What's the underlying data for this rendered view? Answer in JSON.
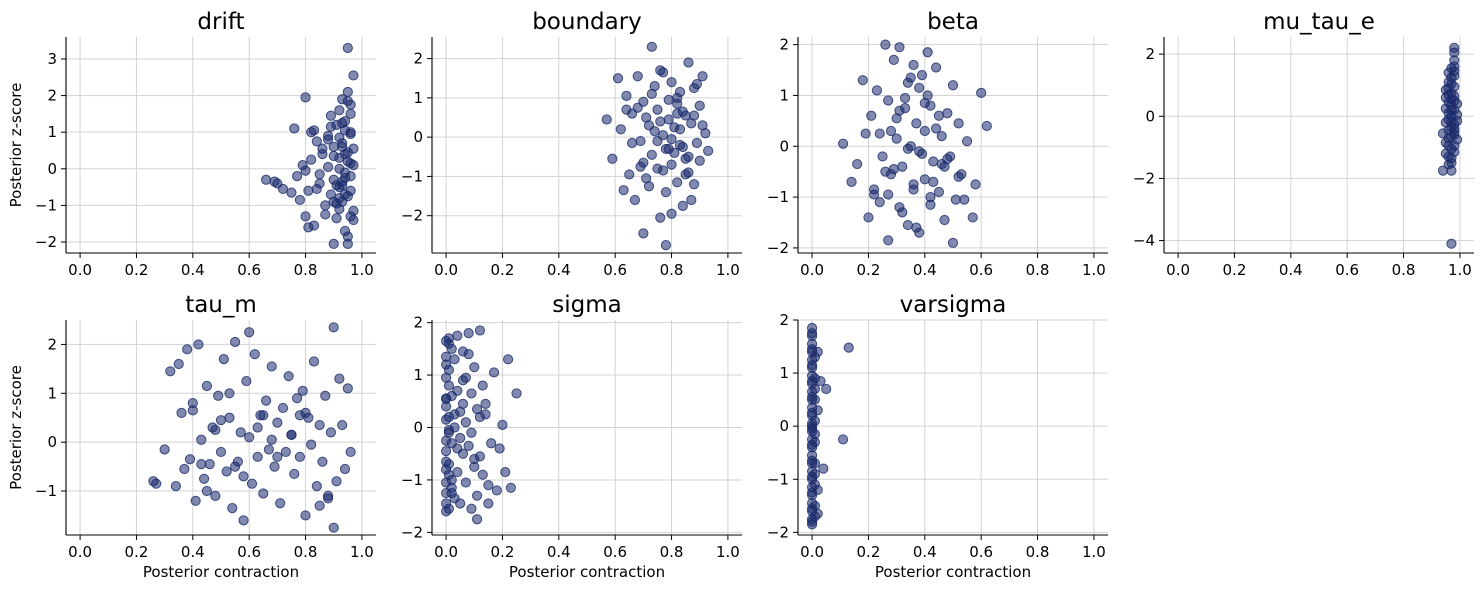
{
  "figure": {
    "xlabel": "Posterior contraction",
    "ylabel": "Posterior z-score"
  },
  "style": {
    "point_color": "#1a2a6c",
    "grid_color": "#d3d3d3"
  },
  "chart_data": [
    {
      "type": "scatter",
      "title": "drift",
      "grid": true,
      "xlim": [
        -0.05,
        1.05
      ],
      "ylim": [
        -2.3,
        3.6
      ],
      "xticks": [
        0,
        0.2,
        0.4,
        0.6,
        0.8,
        1.0
      ],
      "xtick_labels": [
        "0.0",
        "0.2",
        "0.4",
        "0.6",
        "0.8",
        "1.0"
      ],
      "yticks": [
        -2,
        -1,
        0,
        1,
        2,
        3
      ],
      "ytick_labels": [
        "−2",
        "−1",
        "0",
        "1",
        "2",
        "3"
      ],
      "show_ylabel": true,
      "show_xlabel": false,
      "x": [
        0.66,
        0.69,
        0.7,
        0.72,
        0.75,
        0.76,
        0.77,
        0.78,
        0.79,
        0.8,
        0.8,
        0.81,
        0.82,
        0.83,
        0.84,
        0.85,
        0.86,
        0.87,
        0.88,
        0.89,
        0.89,
        0.9,
        0.9,
        0.91,
        0.91,
        0.92,
        0.92,
        0.92,
        0.93,
        0.93,
        0.93,
        0.94,
        0.94,
        0.94,
        0.95,
        0.95,
        0.95,
        0.96,
        0.96,
        0.96,
        0.97,
        0.97,
        0.8,
        0.82,
        0.85,
        0.88,
        0.9,
        0.92,
        0.93,
        0.94,
        0.95,
        0.96,
        0.97,
        0.88,
        0.91,
        0.93,
        0.95,
        0.96,
        0.94,
        0.92,
        0.9,
        0.89,
        0.87,
        0.86,
        0.84,
        0.83,
        0.81,
        0.92,
        0.95,
        0.97,
        0.96,
        0.94,
        0.93,
        0.91,
        0.9,
        0.95,
        0.96,
        0.97,
        0.94,
        0.92,
        0.96,
        0.95,
        0.93
      ],
      "y": [
        -0.3,
        -0.35,
        -0.4,
        -0.55,
        -0.65,
        1.1,
        -0.2,
        -0.85,
        0.1,
        -1.3,
        1.95,
        -0.6,
        0.25,
        -1.55,
        0.75,
        -0.4,
        0.55,
        -1.0,
        0.9,
        1.45,
        -0.7,
        -2.05,
        0.35,
        1.2,
        -1.35,
        0.0,
        -0.5,
        1.6,
        1.9,
        -0.9,
        0.6,
        -1.7,
        1.05,
        -0.25,
        2.1,
        -2.05,
        0.45,
        1.75,
        -0.6,
        0.95,
        2.55,
        -1.4,
        -0.05,
        1.0,
        -0.15,
        0.8,
        -0.9,
        0.3,
        -0.35,
        1.3,
        -0.75,
        0.15,
        -1.15,
        0.05,
        -0.45,
        0.7,
        -1.85,
        1.5,
        -0.1,
        0.85,
        -0.3,
        1.15,
        -1.25,
        0.4,
        -0.55,
        1.05,
        -1.6,
        -1.1,
        0.2,
        0.55,
        -0.2,
        -0.7,
        1.25,
        -0.95,
        0.6,
        1.85,
        -1.3,
        0.1,
        0.4,
        -0.8,
        1.0,
        3.3,
        -0.45
      ]
    },
    {
      "type": "scatter",
      "title": "boundary",
      "grid": true,
      "xlim": [
        -0.05,
        1.05
      ],
      "ylim": [
        -2.95,
        2.55
      ],
      "xticks": [
        0,
        0.2,
        0.4,
        0.6,
        0.8,
        1.0
      ],
      "xtick_labels": [
        "0.0",
        "0.2",
        "0.4",
        "0.6",
        "0.8",
        "1.0"
      ],
      "yticks": [
        -2,
        -1,
        0,
        1,
        2
      ],
      "ytick_labels": [
        "−2",
        "−1",
        "0",
        "1",
        "2"
      ],
      "show_ylabel": false,
      "show_xlabel": false,
      "x": [
        0.57,
        0.59,
        0.61,
        0.62,
        0.63,
        0.64,
        0.65,
        0.66,
        0.67,
        0.68,
        0.69,
        0.7,
        0.7,
        0.71,
        0.72,
        0.73,
        0.73,
        0.74,
        0.75,
        0.75,
        0.76,
        0.77,
        0.77,
        0.78,
        0.79,
        0.79,
        0.8,
        0.8,
        0.81,
        0.82,
        0.82,
        0.83,
        0.83,
        0.84,
        0.85,
        0.85,
        0.86,
        0.86,
        0.87,
        0.88,
        0.88,
        0.89,
        0.9,
        0.9,
        0.91,
        0.92,
        0.93,
        0.72,
        0.76,
        0.8,
        0.84,
        0.78,
        0.74,
        0.82,
        0.86,
        0.7,
        0.68,
        0.88,
        0.8,
        0.76,
        0.84,
        0.79,
        0.81,
        0.83,
        0.77,
        0.73,
        0.75,
        0.87,
        0.89,
        0.66,
        0.64,
        0.91,
        0.85,
        0.71,
        0.69,
        0.78,
        0.82
      ],
      "y": [
        0.45,
        -0.55,
        1.5,
        0.2,
        -1.35,
        1.05,
        -0.95,
        0.6,
        -1.6,
        1.55,
        -0.1,
        -2.45,
        0.9,
        -1.05,
        0.3,
        2.3,
        -0.45,
        1.3,
        -0.8,
        0.7,
        -2.05,
        1.65,
        0.05,
        -1.4,
        0.95,
        -0.3,
        1.4,
        -0.7,
        0.25,
        -1.15,
        0.85,
        -0.2,
        1.15,
        -1.75,
        0.55,
        -0.55,
        1.9,
        -0.9,
        0.35,
        1.25,
        -1.2,
        -0.15,
        0.8,
        -0.6,
        1.55,
        0.1,
        -0.35,
        -1.25,
        0.4,
        -0.05,
        0.65,
        -2.75,
        0.15,
        1.0,
        -0.5,
        -0.65,
        0.75,
        0.55,
        -1.95,
        1.7,
        -0.25,
        0.45,
        -0.4,
        0.2,
        -0.85,
        1.1,
        -0.1,
        -1.6,
        1.35,
        -0.15,
        0.7,
        0.3,
        -0.95,
        0.5,
        -0.75,
        -0.3,
        0.6
      ]
    },
    {
      "type": "scatter",
      "title": "beta",
      "grid": true,
      "xlim": [
        -0.05,
        1.05
      ],
      "ylim": [
        -2.1,
        2.15
      ],
      "xticks": [
        0,
        0.2,
        0.4,
        0.6,
        0.8,
        1.0
      ],
      "xtick_labels": [
        "0.0",
        "0.2",
        "0.4",
        "0.6",
        "0.8",
        "1.0"
      ],
      "yticks": [
        -2,
        -1,
        0,
        1,
        2
      ],
      "ytick_labels": [
        "−2",
        "−1",
        "0",
        "1",
        "2"
      ],
      "show_ylabel": false,
      "show_xlabel": false,
      "x": [
        0.11,
        0.14,
        0.16,
        0.18,
        0.2,
        0.21,
        0.22,
        0.23,
        0.24,
        0.25,
        0.26,
        0.27,
        0.27,
        0.28,
        0.29,
        0.3,
        0.31,
        0.31,
        0.32,
        0.33,
        0.34,
        0.34,
        0.35,
        0.36,
        0.36,
        0.37,
        0.38,
        0.38,
        0.39,
        0.4,
        0.4,
        0.41,
        0.42,
        0.42,
        0.43,
        0.44,
        0.45,
        0.46,
        0.47,
        0.48,
        0.49,
        0.5,
        0.51,
        0.52,
        0.53,
        0.55,
        0.57,
        0.6,
        0.62,
        0.26,
        0.3,
        0.34,
        0.38,
        0.42,
        0.46,
        0.5,
        0.28,
        0.32,
        0.36,
        0.4,
        0.44,
        0.48,
        0.24,
        0.35,
        0.45,
        0.39,
        0.33,
        0.29,
        0.41,
        0.37,
        0.43,
        0.31,
        0.27,
        0.47,
        0.52,
        0.22,
        0.19,
        0.54,
        0.58
      ],
      "y": [
        0.05,
        -0.7,
        -0.35,
        1.3,
        -1.4,
        0.6,
        -0.95,
        1.1,
        0.25,
        -0.2,
        2.0,
        -1.85,
        0.9,
        -0.55,
        1.7,
        0.15,
        -1.2,
        1.95,
        -0.4,
        0.75,
        -1.55,
        1.25,
        0.0,
        -0.85,
        1.6,
        0.45,
        -1.7,
        -0.1,
        1.4,
        -0.65,
        0.3,
        1.0,
        -1.15,
        0.8,
        -0.3,
        1.55,
        -0.9,
        0.2,
        -1.45,
        0.65,
        -0.2,
        1.2,
        -1.05,
        0.45,
        -0.55,
        0.1,
        -1.4,
        1.05,
        0.4,
        -0.5,
        0.55,
        -0.05,
        1.15,
        -1.0,
        -0.35,
        -1.9,
        0.3,
        -1.3,
        -0.75,
        0.85,
        0.35,
        -0.25,
        -1.1,
        1.35,
        0.6,
        -0.15,
        0.95,
        -0.45,
        1.85,
        -1.6,
        -0.7,
        0.7,
        -0.95,
        -0.4,
        -0.6,
        -0.85,
        0.25,
        -1.05,
        -0.75
      ]
    },
    {
      "type": "scatter",
      "title": "mu_tau_e",
      "grid": true,
      "xlim": [
        -0.05,
        1.05
      ],
      "ylim": [
        -4.4,
        2.55
      ],
      "xticks": [
        0,
        0.2,
        0.4,
        0.6,
        0.8,
        1.0
      ],
      "xtick_labels": [
        "0.0",
        "0.2",
        "0.4",
        "0.6",
        "0.8",
        "1.0"
      ],
      "yticks": [
        -4,
        -2,
        0,
        2
      ],
      "ytick_labels": [
        "−4",
        "−2",
        "0",
        "2"
      ],
      "show_ylabel": false,
      "show_xlabel": false,
      "x": [
        0.94,
        0.95,
        0.95,
        0.95,
        0.96,
        0.96,
        0.96,
        0.96,
        0.96,
        0.97,
        0.97,
        0.97,
        0.97,
        0.97,
        0.97,
        0.98,
        0.98,
        0.98,
        0.98,
        0.98,
        0.98,
        0.98,
        0.99,
        0.99,
        0.99,
        0.94,
        0.95,
        0.96,
        0.96,
        0.97,
        0.97,
        0.98,
        0.98,
        0.98,
        0.99,
        0.95,
        0.96,
        0.97,
        0.97,
        0.98,
        0.98,
        0.96,
        0.97,
        0.97,
        0.98,
        0.96,
        0.97,
        0.98,
        0.95,
        0.96,
        0.97,
        0.98,
        0.97,
        0.96,
        0.98,
        0.97
      ],
      "y": [
        -1.75,
        -0.2,
        0.6,
        -1.2,
        1.1,
        -0.7,
        0.1,
        -1.55,
        0.9,
        1.55,
        -0.35,
        0.35,
        -1.05,
        0.75,
        -1.75,
        2.2,
        1.8,
        -0.5,
        0.2,
        -0.95,
        1.3,
        0.5,
        -0.15,
        -0.75,
        0.4,
        -0.55,
        0.85,
        -0.45,
        1.4,
        0.55,
        -1.35,
        2.05,
        -1.15,
        0.95,
        0.05,
        0.25,
        -0.95,
        1.05,
        -0.65,
        -0.25,
        1.6,
        0.7,
        -0.2,
        1.25,
        -0.6,
        -1.3,
        0.2,
        0.65,
        -0.85,
        0.45,
        -1.5,
        1.45,
        0.0,
        -0.1,
        -0.4,
        -4.1
      ]
    },
    {
      "type": "scatter",
      "title": "tau_m",
      "grid": true,
      "xlim": [
        -0.05,
        1.05
      ],
      "ylim": [
        -1.9,
        2.5
      ],
      "xticks": [
        0,
        0.2,
        0.4,
        0.6,
        0.8,
        1.0
      ],
      "xtick_labels": [
        "0.0",
        "0.2",
        "0.4",
        "0.6",
        "0.8",
        "1.0"
      ],
      "yticks": [
        -1,
        0,
        1,
        2
      ],
      "ytick_labels": [
        "−1",
        "0",
        "1",
        "2"
      ],
      "show_ylabel": true,
      "show_xlabel": true,
      "x": [
        0.26,
        0.27,
        0.3,
        0.32,
        0.34,
        0.35,
        0.36,
        0.37,
        0.38,
        0.39,
        0.4,
        0.41,
        0.42,
        0.43,
        0.44,
        0.45,
        0.46,
        0.47,
        0.48,
        0.49,
        0.5,
        0.51,
        0.52,
        0.53,
        0.54,
        0.55,
        0.56,
        0.57,
        0.58,
        0.59,
        0.6,
        0.61,
        0.62,
        0.63,
        0.64,
        0.65,
        0.66,
        0.67,
        0.68,
        0.69,
        0.7,
        0.71,
        0.72,
        0.73,
        0.74,
        0.75,
        0.76,
        0.77,
        0.78,
        0.79,
        0.8,
        0.81,
        0.82,
        0.83,
        0.84,
        0.85,
        0.86,
        0.87,
        0.88,
        0.89,
        0.9,
        0.91,
        0.92,
        0.93,
        0.94,
        0.95,
        0.96,
        0.4,
        0.45,
        0.5,
        0.55,
        0.6,
        0.65,
        0.7,
        0.75,
        0.8,
        0.85,
        0.9,
        0.48,
        0.58,
        0.68,
        0.78,
        0.88,
        0.43,
        0.53,
        0.63
      ],
      "y": [
        -0.8,
        -0.85,
        -0.15,
        1.45,
        -0.9,
        1.6,
        0.6,
        -0.55,
        1.9,
        -0.35,
        0.8,
        -1.2,
        2.0,
        0.05,
        -0.75,
        1.15,
        -0.45,
        0.3,
        -1.1,
        0.95,
        -0.2,
        1.7,
        -0.6,
        0.5,
        -1.35,
        2.05,
        -0.4,
        0.2,
        -1.6,
        1.25,
        0.1,
        -0.85,
        1.8,
        -0.3,
        0.55,
        -1.05,
        0.85,
        -0.15,
        1.55,
        -0.5,
        0.4,
        -1.25,
        0.7,
        -0.2,
        1.35,
        0.15,
        -0.65,
        0.9,
        -0.3,
        1.05,
        -1.5,
        0.5,
        -0.05,
        1.65,
        -0.9,
        0.35,
        -0.4,
        0.95,
        -1.15,
        0.2,
        2.35,
        -0.8,
        1.3,
        0.35,
        -0.55,
        1.1,
        -0.2,
        0.65,
        -1.0,
        0.45,
        -0.5,
        2.25,
        0.55,
        -0.3,
        0.15,
        0.6,
        -1.3,
        -1.75,
        0.25,
        -0.7,
        0.05,
        0.55,
        -1.1,
        -0.45,
        1.0,
        0.3
      ]
    },
    {
      "type": "scatter",
      "title": "sigma",
      "grid": true,
      "xlim": [
        -0.05,
        1.05
      ],
      "ylim": [
        -2.05,
        2.05
      ],
      "xticks": [
        0,
        0.2,
        0.4,
        0.6,
        0.8,
        1.0
      ],
      "xtick_labels": [
        "0.0",
        "0.2",
        "0.4",
        "0.6",
        "0.8",
        "1.0"
      ],
      "yticks": [
        -2,
        -1,
        0,
        1,
        2
      ],
      "ytick_labels": [
        "−2",
        "−1",
        "0",
        "1",
        "2"
      ],
      "show_ylabel": false,
      "show_xlabel": true,
      "x": [
        0.0,
        0.0,
        0.0,
        0.0,
        0.0,
        0.0,
        0.0,
        0.0,
        0.0,
        0.0,
        0.0,
        0.0,
        0.0,
        0.0,
        0.01,
        0.01,
        0.01,
        0.01,
        0.01,
        0.01,
        0.01,
        0.01,
        0.02,
        0.02,
        0.02,
        0.02,
        0.03,
        0.03,
        0.03,
        0.04,
        0.04,
        0.04,
        0.05,
        0.05,
        0.06,
        0.06,
        0.06,
        0.07,
        0.07,
        0.08,
        0.08,
        0.09,
        0.09,
        0.1,
        0.1,
        0.11,
        0.11,
        0.12,
        0.12,
        0.13,
        0.13,
        0.14,
        0.15,
        0.16,
        0.17,
        0.18,
        0.2,
        0.21,
        0.22,
        0.23,
        0.25,
        0.02,
        0.03,
        0.05,
        0.08,
        0.1,
        0.12,
        0.15,
        0.04,
        0.07,
        0.09,
        0.11,
        0.0,
        0.01,
        0.02,
        0.06,
        0.14,
        0.19,
        0.0,
        0.01
      ],
      "y": [
        1.65,
        1.35,
        0.95,
        0.55,
        0.15,
        -0.25,
        -0.65,
        -1.05,
        -1.45,
        1.2,
        0.4,
        -0.45,
        -1.25,
        -1.6,
        1.7,
        0.8,
        -0.1,
        -0.9,
        1.1,
        0.2,
        -0.7,
        -1.55,
        1.5,
        0.6,
        -0.3,
        -1.15,
        1.3,
        0.0,
        -1.35,
        1.75,
        0.7,
        -0.85,
        0.3,
        -1.45,
        1.45,
        -0.5,
        0.9,
        -1.05,
        0.1,
        1.8,
        -0.35,
        0.65,
        -1.55,
        1.15,
        -0.75,
        0.35,
        -1.3,
        1.85,
        -0.55,
        0.8,
        -0.9,
        0.45,
        -1.1,
        -0.3,
        1.05,
        -1.2,
        0.05,
        -0.85,
        1.3,
        -1.15,
        0.65,
        -1.0,
        0.25,
        -0.2,
        1.4,
        -0.6,
        0.2,
        -1.45,
        -0.4,
        0.95,
        -0.1,
        -1.75,
        0.55,
        -0.05,
        -1.25,
        0.45,
        0.25,
        -0.4,
        -0.8,
        1.6
      ]
    },
    {
      "type": "scatter",
      "title": "varsigma",
      "grid": true,
      "xlim": [
        -0.05,
        1.05
      ],
      "ylim": [
        -2.05,
        2.0
      ],
      "xticks": [
        0,
        0.2,
        0.4,
        0.6,
        0.8,
        1.0
      ],
      "xtick_labels": [
        "0.0",
        "0.2",
        "0.4",
        "0.6",
        "0.8",
        "1.0"
      ],
      "yticks": [
        -2,
        -1,
        0,
        1,
        2
      ],
      "ytick_labels": [
        "−2",
        "−1",
        "0",
        "1",
        "2"
      ],
      "show_ylabel": false,
      "show_xlabel": true,
      "x": [
        0.0,
        0.0,
        0.0,
        0.0,
        0.0,
        0.0,
        0.0,
        0.0,
        0.0,
        0.0,
        0.0,
        0.0,
        0.0,
        0.0,
        0.0,
        0.0,
        0.0,
        0.0,
        0.0,
        0.0,
        0.0,
        0.0,
        0.0,
        0.0,
        0.0,
        0.0,
        0.0,
        0.0,
        0.0,
        0.0,
        0.0,
        0.0,
        0.0,
        0.0,
        0.0,
        0.0,
        0.0,
        0.0,
        0.0,
        0.0,
        0.01,
        0.01,
        0.01,
        0.01,
        0.01,
        0.01,
        0.01,
        0.01,
        0.01,
        0.01,
        0.01,
        0.01,
        0.02,
        0.02,
        0.02,
        0.02,
        0.03,
        0.04,
        0.05,
        0.11,
        0.13
      ],
      "y": [
        1.85,
        1.7,
        1.55,
        1.4,
        1.25,
        1.1,
        0.95,
        0.8,
        0.65,
        0.5,
        0.35,
        0.2,
        0.05,
        -0.1,
        -0.25,
        -0.4,
        -0.55,
        -0.7,
        -0.85,
        -1.0,
        -1.15,
        -1.3,
        -1.45,
        -1.6,
        -1.75,
        -1.85,
        1.75,
        1.45,
        1.15,
        0.85,
        0.55,
        0.25,
        -0.05,
        -0.35,
        -0.65,
        -0.95,
        -1.25,
        -1.55,
        -1.8,
        0.0,
        1.3,
        0.9,
        0.5,
        0.1,
        -0.3,
        -0.7,
        -1.1,
        -1.5,
        -1.7,
        0.7,
        -0.15,
        -0.9,
        1.4,
        0.3,
        -1.2,
        -1.65,
        0.85,
        -0.8,
        0.7,
        -0.25,
        1.48
      ]
    }
  ]
}
